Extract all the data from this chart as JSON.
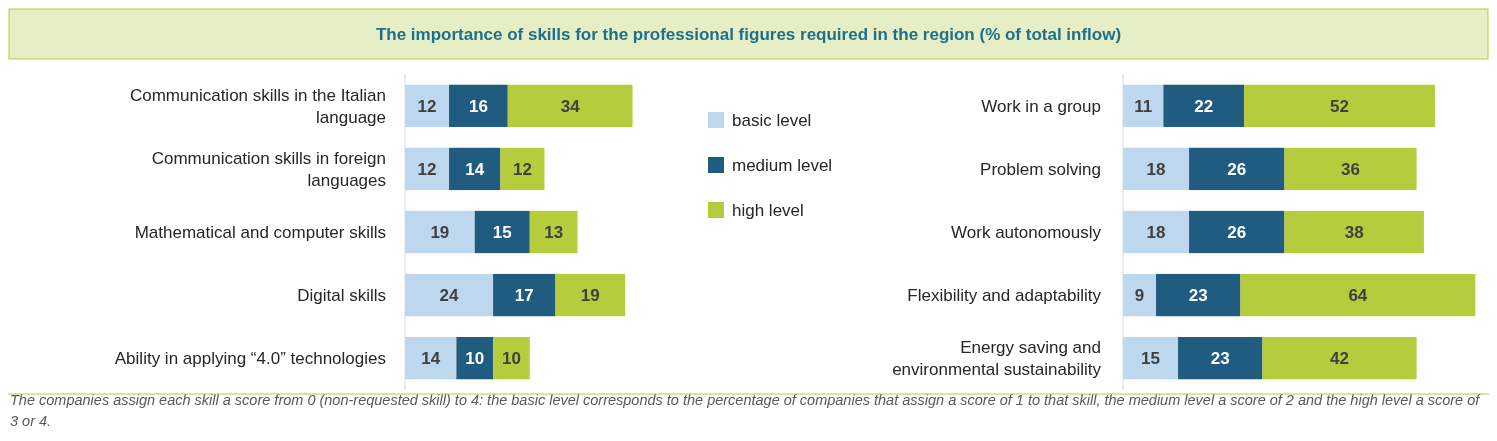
{
  "chart_data": [
    {
      "type": "bar",
      "orientation": "horizontal",
      "stacked": true,
      "title": "The importance of skills for the professional figures required in the region (% of total inflow)",
      "categories": [
        "Communication skills in the Italian language",
        "Communication skills in foreign languages",
        "Mathematical and computer skills",
        "Digital skills",
        "Ability in applying “4.0” technologies"
      ],
      "series": [
        {
          "name": "basic level",
          "color": "#bdd7ee",
          "values": [
            12,
            12,
            19,
            24,
            14
          ]
        },
        {
          "name": "medium level",
          "color": "#1f5c80",
          "values": [
            16,
            14,
            15,
            17,
            10
          ]
        },
        {
          "name": "high level",
          "color": "#b5cc3c",
          "values": [
            34,
            12,
            13,
            19,
            10
          ]
        }
      ],
      "data_labels": true,
      "legend": "right"
    },
    {
      "type": "bar",
      "orientation": "horizontal",
      "stacked": true,
      "categories": [
        "Work in a group",
        "Problem solving",
        "Work autonomously",
        "Flexibility and adaptability",
        "Energy saving and environmental sustainability"
      ],
      "series": [
        {
          "color": "#bdd7ee",
          "values": [
            11,
            18,
            18,
            9,
            15
          ]
        },
        {
          "color": "#1f5c80",
          "values": [
            22,
            26,
            26,
            23,
            23
          ]
        },
        {
          "color": "#b5cc3c",
          "values": [
            52,
            36,
            38,
            64,
            42
          ]
        }
      ],
      "data_labels": true,
      "annotations": [
        "The companies assign each skill a score from 0 (non-requested skill) to 4: the basic level corresponds to the percentage of companies that assign a score of 1 to that skill, the medium level a score of 2 and the high level a score of 3 or 4."
      ]
    }
  ]
}
